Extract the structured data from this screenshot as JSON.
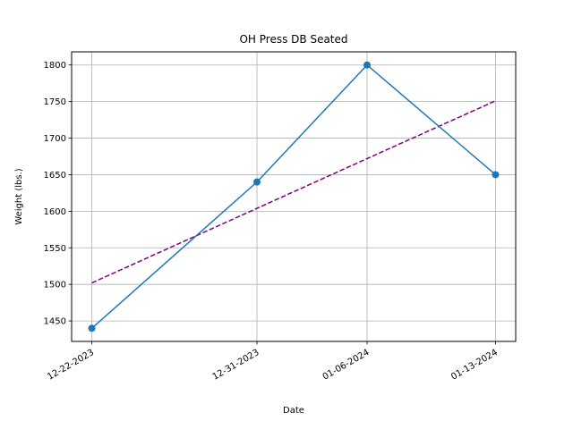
{
  "chart_data": {
    "type": "line",
    "title": "OH Press DB Seated",
    "xlabel": "Date",
    "ylabel": "Weight (lbs.)",
    "x_tick_labels": [
      "12-22-2023",
      "12-31-2023",
      "01-06-2024",
      "01-13-2024"
    ],
    "x_dates": [
      "2023-12-22",
      "2023-12-31",
      "2024-01-06",
      "2024-01-13"
    ],
    "y_ticks": [
      1450,
      1500,
      1550,
      1600,
      1650,
      1700,
      1750,
      1800
    ],
    "ylim": [
      1422,
      1818
    ],
    "grid": true,
    "series": [
      {
        "values": [
          1440,
          1640,
          1800,
          1650
        ],
        "color": "#1f77b4",
        "style": "solid",
        "marker": "circle"
      },
      {
        "values": [
          1502,
          1604,
          1672,
          1751
        ],
        "color": "#800080",
        "style": "dashed",
        "marker": "none"
      }
    ]
  }
}
